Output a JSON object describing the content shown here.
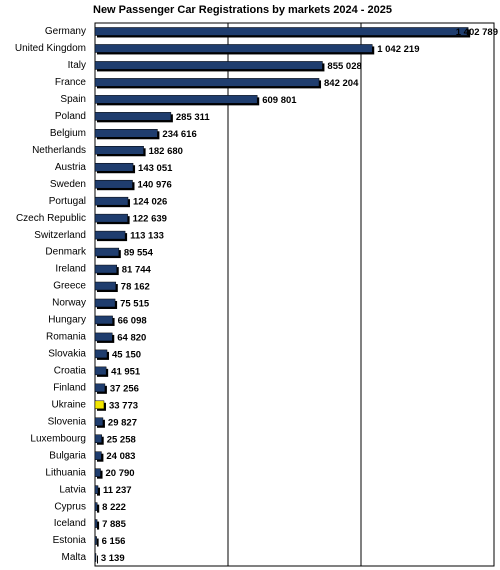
{
  "chart_data": {
    "type": "hbar",
    "title": "New Passenger Car Registrations by markets 2024 - 2025",
    "categories": [
      "Germany",
      "United Kingdom",
      "Italy",
      "France",
      "Spain",
      "Poland",
      "Belgium",
      "Netherlands",
      "Austria",
      "Sweden",
      "Portugal",
      "Czech Republic",
      "Switzerland",
      "Denmark",
      "Ireland",
      "Greece",
      "Norway",
      "Hungary",
      "Romania",
      "Slovakia",
      "Croatia",
      "Finland",
      "Ukraine",
      "Slovenia",
      "Luxembourg",
      "Bulgaria",
      "Lithuania",
      "Latvia",
      "Cyprus",
      "Iceland",
      "Estonia",
      "Malta"
    ],
    "values": [
      1402789,
      1042219,
      855028,
      842204,
      609801,
      285311,
      234616,
      182680,
      143051,
      140976,
      124026,
      122639,
      113133,
      89554,
      81744,
      78162,
      75515,
      66098,
      64820,
      45150,
      41951,
      37256,
      33773,
      29827,
      25258,
      24083,
      20790,
      11237,
      8222,
      7885,
      6156,
      3139
    ],
    "value_labels": [
      "1 402 789",
      "1 042 219",
      "855 028",
      "842 204",
      "609 801",
      "285 311",
      "234 616",
      "182 680",
      "143 051",
      "140 976",
      "124 026",
      "122 639",
      "113 133",
      "89 554",
      "81 744",
      "78 162",
      "75 515",
      "66 098",
      "64 820",
      "45 150",
      "41 951",
      "37 256",
      "33 773",
      "29 827",
      "25 258",
      "24 083",
      "20 790",
      "11 237",
      "8 222",
      "7 885",
      "6 156",
      "3 139"
    ],
    "colors": [
      "#1f3d6e",
      "#1f3d6e",
      "#1f3d6e",
      "#1f3d6e",
      "#1f3d6e",
      "#1f3d6e",
      "#1f3d6e",
      "#1f3d6e",
      "#1f3d6e",
      "#1f3d6e",
      "#1f3d6e",
      "#1f3d6e",
      "#1f3d6e",
      "#1f3d6e",
      "#1f3d6e",
      "#1f3d6e",
      "#1f3d6e",
      "#1f3d6e",
      "#1f3d6e",
      "#1f3d6e",
      "#1f3d6e",
      "#1f3d6e",
      "#f2e600",
      "#1f3d6e",
      "#1f3d6e",
      "#1f3d6e",
      "#1f3d6e",
      "#1f3d6e",
      "#1f3d6e",
      "#1f3d6e",
      "#1f3d6e",
      "#1f3d6e"
    ],
    "xlim": [
      0,
      1500000
    ],
    "xticks": [
      0,
      500000,
      1000000,
      1500000
    ],
    "grid": true
  }
}
